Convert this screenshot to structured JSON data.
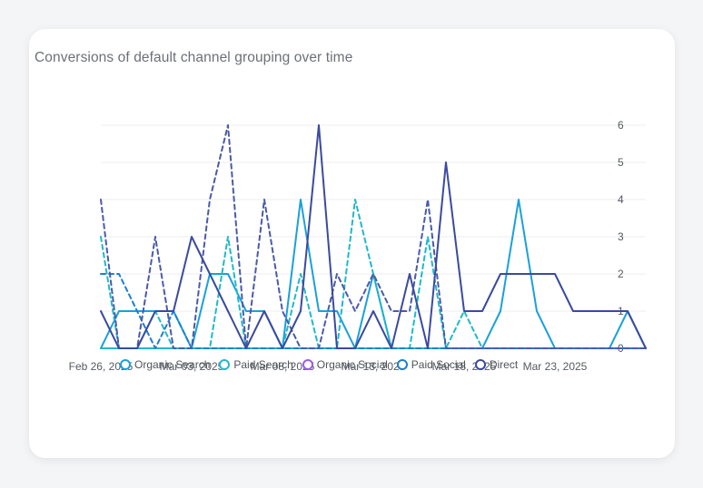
{
  "card": {
    "title": "Conversions of default channel grouping over time"
  },
  "chart_data": {
    "type": "line",
    "title": "Conversions of default channel grouping over time",
    "x": [
      "2025-02-26",
      "2025-02-27",
      "2025-02-28",
      "2025-03-01",
      "2025-03-02",
      "2025-03-03",
      "2025-03-04",
      "2025-03-05",
      "2025-03-06",
      "2025-03-07",
      "2025-03-08",
      "2025-03-09",
      "2025-03-10",
      "2025-03-11",
      "2025-03-12",
      "2025-03-13",
      "2025-03-14",
      "2025-03-15",
      "2025-03-16",
      "2025-03-17",
      "2025-03-18",
      "2025-03-19",
      "2025-03-20",
      "2025-03-21",
      "2025-03-22",
      "2025-03-23",
      "2025-03-24",
      "2025-03-25",
      "2025-03-26",
      "2025-03-27",
      "2025-03-28"
    ],
    "x_tick_labels": [
      "Feb 26, 2025",
      "Mar 03, 2025",
      "Mar 08, 2025",
      "Mar 13, 2025",
      "Mar 18, 2025",
      "Mar 23, 2025"
    ],
    "y_ticks": [
      0,
      1,
      2,
      3,
      4,
      5,
      6
    ],
    "ylim": [
      0,
      6
    ],
    "grid": true,
    "legend_position": "bottom",
    "series": [
      {
        "name": "Organic Search",
        "color": "#1aa0dd",
        "style": "solid",
        "values": [
          0,
          1,
          1,
          1,
          1,
          0,
          2,
          2,
          1,
          1,
          0,
          4,
          1,
          1,
          0,
          2,
          0,
          0,
          0,
          0,
          0,
          0,
          1,
          4,
          1,
          0,
          0,
          0,
          0,
          1,
          0
        ]
      },
      {
        "name": "Paid Search",
        "color": "#22b8c8",
        "style": "solid",
        "values": [
          0,
          0,
          0,
          0,
          0,
          0,
          0,
          0,
          0,
          0,
          0,
          0,
          0,
          0,
          0,
          0,
          0,
          0,
          0,
          0,
          0,
          0,
          0,
          0,
          0,
          0,
          0,
          0,
          0,
          0,
          0
        ]
      },
      {
        "name": "Paid Search",
        "color": "#22b8c8",
        "style": "dashed",
        "values": [
          3,
          0,
          0,
          1,
          0,
          0,
          0,
          3,
          0,
          0,
          0,
          2,
          0,
          0,
          4,
          2,
          0,
          0,
          3,
          0,
          1,
          0,
          0,
          0,
          0,
          0,
          0,
          0,
          0,
          0,
          0
        ]
      },
      {
        "name": "Paid Social",
        "color": "#1d7fd0",
        "style": "dashed",
        "values": [
          2,
          2,
          1,
          0,
          1,
          0,
          0,
          0,
          0,
          0,
          0,
          0,
          0,
          0,
          0,
          0,
          0,
          0,
          0,
          0,
          0,
          0,
          0,
          0,
          0,
          0,
          0,
          0,
          0,
          0,
          0
        ]
      },
      {
        "name": "Direct",
        "color": "#4b5aa8",
        "style": "dashed",
        "values": [
          4,
          0,
          0,
          3,
          0,
          0,
          4,
          6,
          0,
          4,
          1,
          0,
          0,
          2,
          1,
          2,
          1,
          1,
          4,
          0,
          0,
          0,
          0,
          0,
          0,
          0,
          0,
          0,
          0,
          0,
          0
        ]
      },
      {
        "name": "Direct",
        "color": "#3b4a9e",
        "style": "solid",
        "values": [
          1,
          0,
          0,
          1,
          1,
          3,
          2,
          1,
          0,
          1,
          0,
          1,
          6,
          0,
          0,
          1,
          0,
          2,
          0,
          5,
          1,
          1,
          2,
          2,
          2,
          2,
          1,
          1,
          1,
          1,
          0
        ]
      }
    ],
    "legend": [
      {
        "name": "Organic Search",
        "color": "#1aa0dd"
      },
      {
        "name": "Paid Search",
        "color": "#22b8c8"
      },
      {
        "name": "Organic Social",
        "color": "#9b5de5"
      },
      {
        "name": "Paid Social",
        "color": "#1d7fd0"
      },
      {
        "name": "Direct",
        "color": "#3b4a9e"
      }
    ]
  }
}
